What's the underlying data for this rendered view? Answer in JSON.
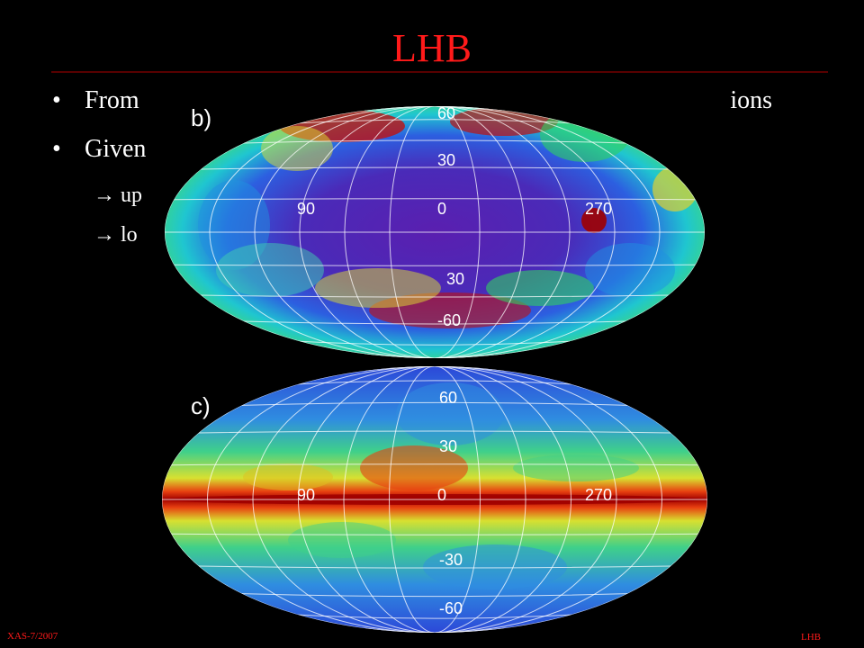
{
  "slide": {
    "title": "LHB",
    "bullets": [
      "From",
      "ions",
      "Given"
    ],
    "sub_bullets": [
      "→ up",
      "→ lo"
    ],
    "footer_left": "XAS-7/2007",
    "footer_right": "LHB"
  },
  "maps": [
    {
      "panel": "b)",
      "labels": [
        "60",
        "30",
        "90",
        "0",
        "270",
        "30",
        "-60"
      ]
    },
    {
      "panel": "c)",
      "labels": [
        "60",
        "30",
        "90",
        "0",
        "270",
        "-30",
        "-60"
      ]
    }
  ]
}
